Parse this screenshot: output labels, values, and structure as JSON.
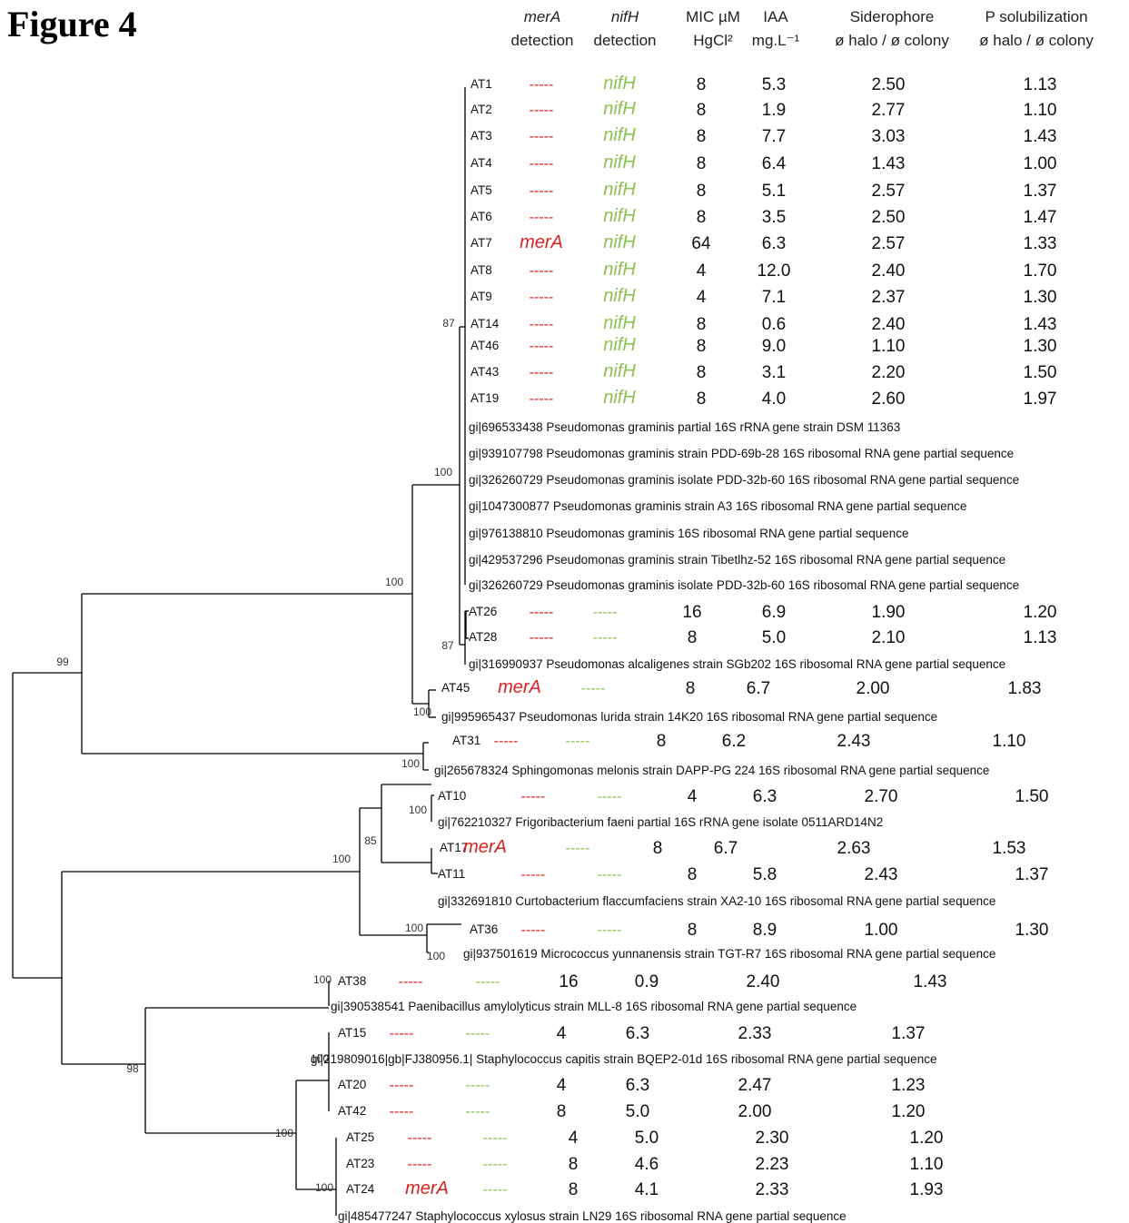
{
  "title": "Figure 4",
  "headers": {
    "mera": [
      "merA",
      "detection"
    ],
    "nifh": [
      "nifH",
      "detection"
    ],
    "mic": [
      "MIC µM",
      "HgCl²"
    ],
    "iaa": [
      "IAA",
      "mg.L⁻¹"
    ],
    "sid": [
      "Siderophore",
      "ø halo / ø colony"
    ],
    "phos": [
      "P solubilization",
      "ø halo / ø colony"
    ]
  },
  "colors": {
    "merA": "#e02020",
    "nifH": "#8cc152",
    "branch": "#000000"
  },
  "leaves": [
    {
      "label": "AT1",
      "merA": false,
      "nifH": true,
      "mic": "8",
      "iaa": "5.3",
      "sid": "2.50",
      "phos": "1.13"
    },
    {
      "label": "AT2",
      "merA": false,
      "nifH": true,
      "mic": "8",
      "iaa": "1.9",
      "sid": "2.77",
      "phos": "1.10"
    },
    {
      "label": "AT3",
      "merA": false,
      "nifH": true,
      "mic": "8",
      "iaa": "7.7",
      "sid": "3.03",
      "phos": "1.43"
    },
    {
      "label": "AT4",
      "merA": false,
      "nifH": true,
      "mic": "8",
      "iaa": "6.4",
      "sid": "1.43",
      "phos": "1.00"
    },
    {
      "label": "AT5",
      "merA": false,
      "nifH": true,
      "mic": "8",
      "iaa": "5.1",
      "sid": "2.57",
      "phos": "1.37"
    },
    {
      "label": "AT6",
      "merA": false,
      "nifH": true,
      "mic": "8",
      "iaa": "3.5",
      "sid": "2.50",
      "phos": "1.47"
    },
    {
      "label": "AT7",
      "merA": true,
      "nifH": true,
      "mic": "64",
      "iaa": "6.3",
      "sid": "2.57",
      "phos": "1.33"
    },
    {
      "label": "AT8",
      "merA": false,
      "nifH": true,
      "mic": "4",
      "iaa": "12.0",
      "sid": "2.40",
      "phos": "1.70"
    },
    {
      "label": "AT9",
      "merA": false,
      "nifH": true,
      "mic": "4",
      "iaa": "7.1",
      "sid": "2.37",
      "phos": "1.30"
    },
    {
      "label": "AT14",
      "merA": false,
      "nifH": true,
      "mic": "8",
      "iaa": "0.6",
      "sid": "2.40",
      "phos": "1.43"
    },
    {
      "label": "AT46",
      "merA": false,
      "nifH": true,
      "mic": "8",
      "iaa": "9.0",
      "sid": "1.10",
      "phos": "1.30"
    },
    {
      "label": "AT43",
      "merA": false,
      "nifH": true,
      "mic": "8",
      "iaa": "3.1",
      "sid": "2.20",
      "phos": "1.50"
    },
    {
      "label": "AT19",
      "merA": false,
      "nifH": true,
      "mic": "8",
      "iaa": "4.0",
      "sid": "2.60",
      "phos": "1.97"
    },
    {
      "label": "gi|696533438 Pseudomonas graminis partial 16S rRNA gene strain DSM 11363"
    },
    {
      "label": "gi|939107798 Pseudomonas graminis strain PDD-69b-28 16S ribosomal RNA gene partial sequence"
    },
    {
      "label": "gi|326260729 Pseudomonas graminis isolate PDD-32b-60 16S ribosomal RNA gene partial sequence"
    },
    {
      "label": "gi|1047300877 Pseudomonas graminis strain A3 16S ribosomal RNA gene partial sequence"
    },
    {
      "label": "gi|976138810 Pseudomonas graminis 16S ribosomal RNA gene partial sequence"
    },
    {
      "label": "gi|429537296 Pseudomonas graminis strain Tibetlhz-52 16S ribosomal RNA gene partial sequence"
    },
    {
      "label": "gi|326260729 Pseudomonas graminis isolate PDD-32b-60 16S ribosomal RNA gene partial sequence"
    },
    {
      "label": "AT26",
      "merA": false,
      "nifH": false,
      "mic": "16",
      "iaa": "6.9",
      "sid": "1.90",
      "phos": "1.20"
    },
    {
      "label": "AT28",
      "merA": false,
      "nifH": false,
      "mic": "8",
      "iaa": "5.0",
      "sid": "2.10",
      "phos": "1.13"
    },
    {
      "label": "gi|316990937 Pseudomonas alcaligenes strain SGb202 16S ribosomal RNA gene partial sequence"
    },
    {
      "label": "AT45",
      "merA": true,
      "nifH": false,
      "mic": "8",
      "iaa": "6.7",
      "sid": "2.00",
      "phos": "1.83"
    },
    {
      "label": "gi|995965437 Pseudomonas lurida strain 14K20 16S ribosomal RNA gene partial sequence"
    },
    {
      "label": "AT31",
      "merA": false,
      "nifH": false,
      "mic": "8",
      "iaa": "6.2",
      "sid": "2.43",
      "phos": "1.10"
    },
    {
      "label": "gi|265678324 Sphingomonas melonis strain DAPP-PG 224 16S ribosomal RNA gene partial sequence"
    },
    {
      "label": "AT10",
      "merA": false,
      "nifH": false,
      "mic": "4",
      "iaa": "6.3",
      "sid": "2.70",
      "phos": "1.50"
    },
    {
      "label": "gi|762210327 Frigoribacterium faeni partial 16S rRNA gene isolate 0511ARD14N2"
    },
    {
      "label": "AT17",
      "merA": true,
      "nifH": false,
      "mic": "8",
      "iaa": "6.7",
      "sid": "2.63",
      "phos": "1.53"
    },
    {
      "label": "AT11",
      "merA": false,
      "nifH": false,
      "mic": "8",
      "iaa": "5.8",
      "sid": "2.43",
      "phos": "1.37"
    },
    {
      "label": "gi|332691810 Curtobacterium flaccumfaciens strain XA2-10 16S ribosomal RNA gene partial sequence"
    },
    {
      "label": "AT36",
      "merA": false,
      "nifH": false,
      "mic": "8",
      "iaa": "8.9",
      "sid": "1.00",
      "phos": "1.30"
    },
    {
      "label": "gi|937501619 Micrococcus yunnanensis strain TGT-R7 16S ribosomal RNA gene partial sequence"
    },
    {
      "label": "AT38",
      "merA": false,
      "nifH": false,
      "mic": "16",
      "iaa": "0.9",
      "sid": "2.40",
      "phos": "1.43"
    },
    {
      "label": "gi|390538541 Paenibacillus amylolyticus strain MLL-8 16S ribosomal RNA gene partial sequence"
    },
    {
      "label": "AT15",
      "merA": false,
      "nifH": false,
      "mic": "4",
      "iaa": "6.3",
      "sid": "2.33",
      "phos": "1.37"
    },
    {
      "label": "gi|219809016|gb|FJ380956.1| Staphylococcus capitis strain BQEP2-01d 16S ribosomal RNA gene partial sequence"
    },
    {
      "label": "AT20",
      "merA": false,
      "nifH": false,
      "mic": "4",
      "iaa": "6.3",
      "sid": "2.47",
      "phos": "1.23"
    },
    {
      "label": "AT42",
      "merA": false,
      "nifH": false,
      "mic": "8",
      "iaa": "5.0",
      "sid": "2.00",
      "phos": "1.20"
    },
    {
      "label": "AT25",
      "merA": false,
      "nifH": false,
      "mic": "4",
      "iaa": "5.0",
      "sid": "2.30",
      "phos": "1.20"
    },
    {
      "label": "AT23",
      "merA": false,
      "nifH": false,
      "mic": "8",
      "iaa": "4.6",
      "sid": "2.23",
      "phos": "1.10"
    },
    {
      "label": "AT24",
      "merA": true,
      "nifH": false,
      "mic": "8",
      "iaa": "4.1",
      "sid": "2.33",
      "phos": "1.93"
    },
    {
      "label": "gi|485477247 Staphylococcus xylosus strain LN29 16S ribosomal RNA gene partial sequence"
    }
  ],
  "tokens": {
    "merA": "merA",
    "nifH": "nifH",
    "absent": "-----"
  },
  "bootstrap": [
    {
      "id": "b87a",
      "value": "87"
    },
    {
      "id": "b100a",
      "value": "100"
    },
    {
      "id": "b87b",
      "value": "87"
    },
    {
      "id": "b100b",
      "value": "100"
    },
    {
      "id": "b100c",
      "value": "100"
    },
    {
      "id": "b99",
      "value": "99"
    },
    {
      "id": "b100d",
      "value": "100"
    },
    {
      "id": "b100e",
      "value": "100"
    },
    {
      "id": "b85",
      "value": "85"
    },
    {
      "id": "b100f",
      "value": "100"
    },
    {
      "id": "b100g",
      "value": "100"
    },
    {
      "id": "b100h",
      "value": "100"
    },
    {
      "id": "b100i",
      "value": "100"
    },
    {
      "id": "b100j",
      "value": "100"
    },
    {
      "id": "b100k",
      "value": "100"
    },
    {
      "id": "b98",
      "value": "98"
    },
    {
      "id": "b100l",
      "value": "100"
    }
  ]
}
